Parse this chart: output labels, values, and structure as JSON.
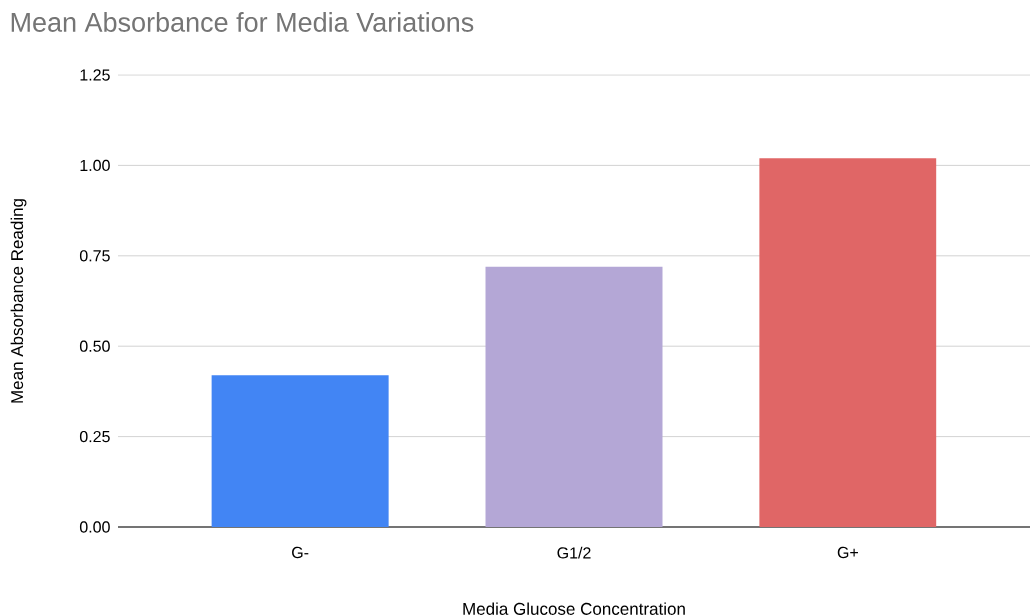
{
  "chart_data": {
    "type": "bar",
    "title": "Mean Absorbance for Media Variations",
    "xlabel": "Media Glucose Concentration",
    "ylabel": "Mean Absorbance Reading",
    "categories": [
      "G-",
      "G1/2",
      "G+"
    ],
    "values": [
      0.42,
      0.72,
      1.02
    ],
    "colors": [
      "#4285f4",
      "#b4a7d6",
      "#e06666"
    ],
    "ylim": [
      0,
      1.25
    ],
    "yticks": [
      {
        "value": 0,
        "label": "0.00"
      },
      {
        "value": 0.25,
        "label": "0.25"
      },
      {
        "value": 0.5,
        "label": "0.50"
      },
      {
        "value": 0.75,
        "label": "0.75"
      },
      {
        "value": 1,
        "label": "1.00"
      },
      {
        "value": 1.25,
        "label": "1.25"
      }
    ],
    "grid": "y"
  }
}
